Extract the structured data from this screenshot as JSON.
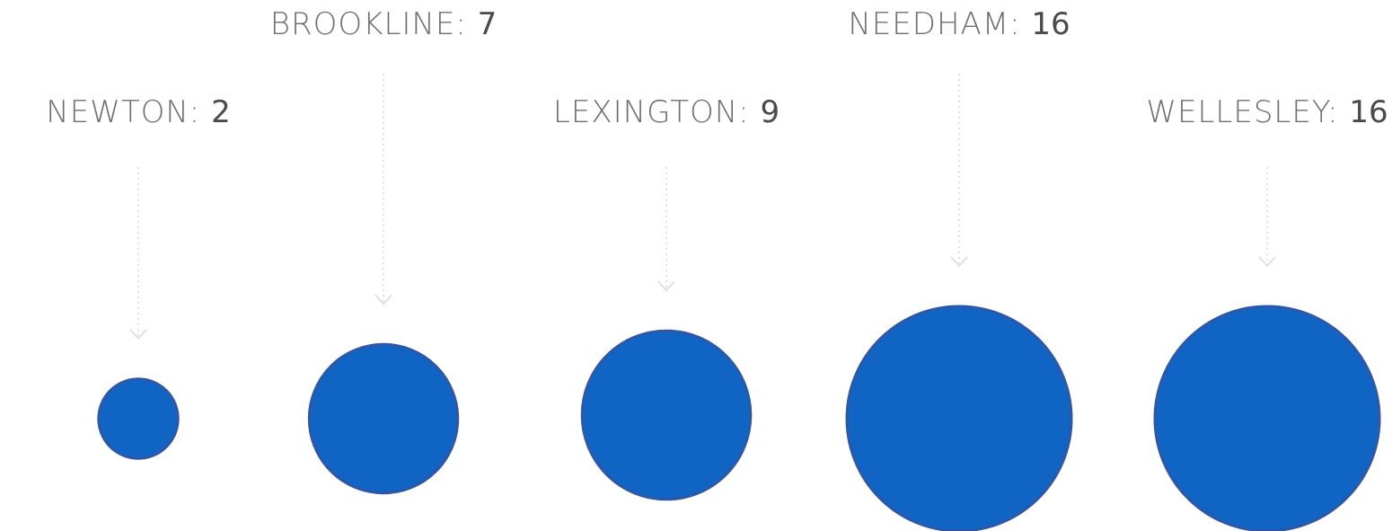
{
  "chart_data": {
    "type": "bubble",
    "title": "",
    "separator": ": ",
    "colors": {
      "bubble_fill": "#1064C4",
      "bubble_stroke": "#2E57A6",
      "label_name": "#6F6F6F",
      "label_value": "#4A4A4A",
      "leader": "#D9D9D9"
    },
    "points": [
      {
        "name": "NEWTON",
        "value": 2
      },
      {
        "name": "BROOKLINE",
        "value": 7
      },
      {
        "name": "LEXINGTON",
        "value": 9
      },
      {
        "name": "NEEDHAM",
        "value": 16
      },
      {
        "name": "WELLESLEY",
        "value": 16
      }
    ]
  }
}
